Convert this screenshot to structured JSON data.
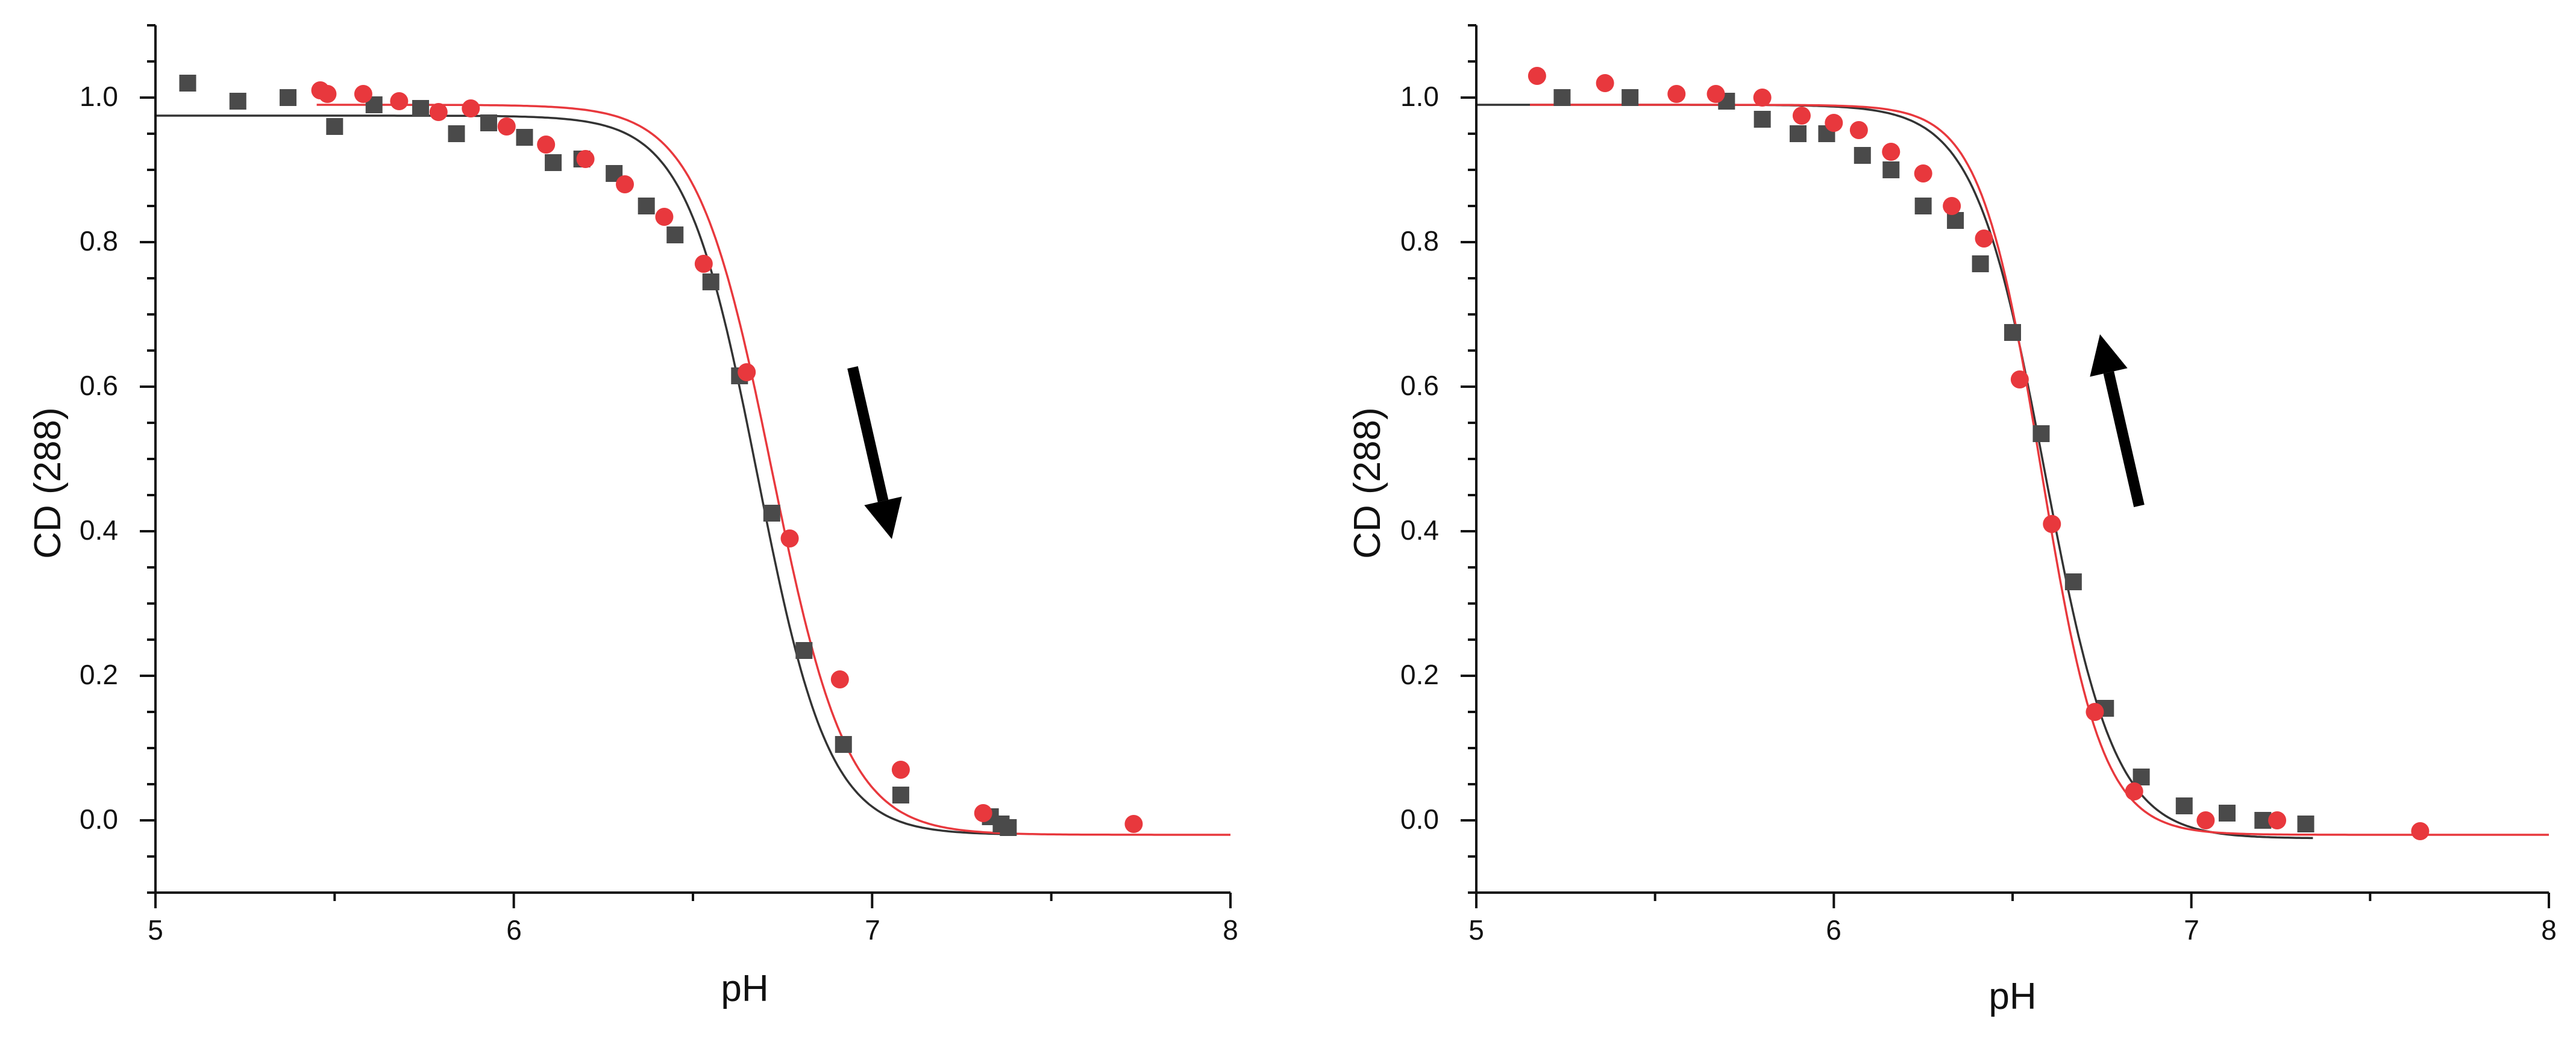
{
  "chart_data": [
    {
      "type": "scatter",
      "xlabel": "pH",
      "ylabel": "CD (288)",
      "xlim": [
        5,
        8
      ],
      "ylim": [
        -0.1,
        1.1
      ],
      "xticks": [
        "5",
        "6",
        "7",
        "8"
      ],
      "yticks": [
        "0.0",
        "0.2",
        "0.4",
        "0.6",
        "0.8",
        "1.0"
      ],
      "grid": false,
      "legend": "none",
      "arrow": "down",
      "series": [
        {
          "marker": "square",
          "color": "#4a4a4a",
          "points": [
            [
              5.09,
              1.02
            ],
            [
              5.23,
              0.995
            ],
            [
              5.37,
              1.0
            ],
            [
              5.5,
              0.96
            ],
            [
              5.61,
              0.99
            ],
            [
              5.74,
              0.985
            ],
            [
              5.84,
              0.95
            ],
            [
              5.93,
              0.965
            ],
            [
              6.03,
              0.945
            ],
            [
              6.11,
              0.91
            ],
            [
              6.19,
              0.915
            ],
            [
              6.28,
              0.895
            ],
            [
              6.37,
              0.85
            ],
            [
              6.45,
              0.81
            ],
            [
              6.55,
              0.745
            ],
            [
              6.63,
              0.615
            ],
            [
              6.72,
              0.425
            ],
            [
              6.81,
              0.235
            ],
            [
              6.92,
              0.105
            ],
            [
              7.08,
              0.035
            ],
            [
              7.33,
              0.005
            ],
            [
              7.36,
              -0.005
            ],
            [
              7.38,
              -0.01
            ]
          ],
          "fit": {
            "bottom": -0.02,
            "top": 0.975,
            "x0": 6.68,
            "slope": 0.1
          },
          "fit_range": [
            5.0,
            7.38
          ]
        },
        {
          "marker": "circle",
          "color": "#e8383d",
          "points": [
            [
              5.46,
              1.01
            ],
            [
              5.48,
              1.005
            ],
            [
              5.58,
              1.005
            ],
            [
              5.68,
              0.995
            ],
            [
              5.79,
              0.98
            ],
            [
              5.88,
              0.985
            ],
            [
              5.98,
              0.96
            ],
            [
              6.09,
              0.935
            ],
            [
              6.2,
              0.915
            ],
            [
              6.31,
              0.88
            ],
            [
              6.42,
              0.835
            ],
            [
              6.53,
              0.77
            ],
            [
              6.65,
              0.62
            ],
            [
              6.77,
              0.39
            ],
            [
              6.91,
              0.195
            ],
            [
              7.08,
              0.07
            ],
            [
              7.31,
              0.01
            ],
            [
              7.73,
              -0.005
            ]
          ],
          "fit": {
            "bottom": -0.02,
            "top": 0.99,
            "x0": 6.72,
            "slope": 0.105
          },
          "fit_range": [
            5.45,
            8.0
          ]
        }
      ]
    },
    {
      "type": "scatter",
      "xlabel": "pH",
      "ylabel": "CD (288)",
      "xlim": [
        5,
        8
      ],
      "ylim": [
        -0.1,
        1.1
      ],
      "xticks": [
        "5",
        "6",
        "7",
        "8"
      ],
      "yticks": [
        "0.0",
        "0.2",
        "0.4",
        "0.6",
        "0.8",
        "1.0"
      ],
      "grid": false,
      "legend": "none",
      "arrow": "up",
      "series": [
        {
          "marker": "square",
          "color": "#4a4a4a",
          "points": [
            [
              5.24,
              1.0
            ],
            [
              5.43,
              1.0
            ],
            [
              5.7,
              0.995
            ],
            [
              5.8,
              0.97
            ],
            [
              5.9,
              0.95
            ],
            [
              5.98,
              0.95
            ],
            [
              6.08,
              0.92
            ],
            [
              6.16,
              0.9
            ],
            [
              6.25,
              0.85
            ],
            [
              6.34,
              0.83
            ],
            [
              6.41,
              0.77
            ],
            [
              6.5,
              0.675
            ],
            [
              6.58,
              0.535
            ],
            [
              6.67,
              0.33
            ],
            [
              6.76,
              0.155
            ],
            [
              6.86,
              0.06
            ],
            [
              6.98,
              0.02
            ],
            [
              7.1,
              0.01
            ],
            [
              7.2,
              0.0
            ],
            [
              7.32,
              -0.005
            ]
          ],
          "fit": {
            "bottom": -0.025,
            "top": 0.99,
            "x0": 6.59,
            "slope": 0.098
          },
          "fit_range": [
            5.0,
            7.34
          ]
        },
        {
          "marker": "circle",
          "color": "#e8383d",
          "points": [
            [
              5.17,
              1.03
            ],
            [
              5.36,
              1.02
            ],
            [
              5.56,
              1.005
            ],
            [
              5.67,
              1.005
            ],
            [
              5.8,
              1.0
            ],
            [
              5.91,
              0.975
            ],
            [
              6.0,
              0.965
            ],
            [
              6.07,
              0.955
            ],
            [
              6.16,
              0.925
            ],
            [
              6.25,
              0.895
            ],
            [
              6.33,
              0.85
            ],
            [
              6.42,
              0.805
            ],
            [
              6.52,
              0.61
            ],
            [
              6.61,
              0.41
            ],
            [
              6.73,
              0.15
            ],
            [
              6.84,
              0.04
            ],
            [
              7.04,
              0.0
            ],
            [
              7.24,
              0.0
            ],
            [
              7.64,
              -0.015
            ]
          ],
          "fit": {
            "bottom": -0.02,
            "top": 0.99,
            "x0": 6.58,
            "slope": 0.085
          },
          "fit_range": [
            5.15,
            8.0
          ]
        }
      ]
    }
  ]
}
